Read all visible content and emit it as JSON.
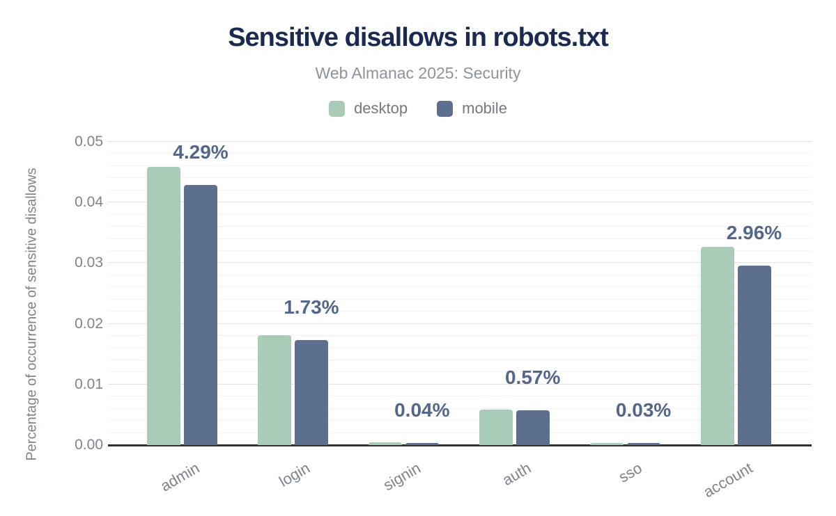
{
  "chart_data": {
    "type": "bar",
    "title": "Sensitive disallows in robots.txt",
    "subtitle": "Web Almanac 2025: Security",
    "categories": [
      "admin",
      "login",
      "signin",
      "auth",
      "sso",
      "account"
    ],
    "series": [
      {
        "name": "desktop",
        "color": "#a8ccb8",
        "values": [
          0.0459,
          0.0181,
          0.0005,
          0.0059,
          0.0003,
          0.0327
        ]
      },
      {
        "name": "mobile",
        "color": "#5d6f8e",
        "values": [
          0.0429,
          0.0173,
          0.0004,
          0.0057,
          0.0003,
          0.0296
        ]
      }
    ],
    "value_labels": {
      "series": "mobile",
      "labels": [
        "4.29%",
        "1.73%",
        "0.04%",
        "0.57%",
        "0.03%",
        "2.96%"
      ]
    },
    "ylabel": "Percentage of occurrence of sensitive disallows",
    "ylim": [
      0,
      0.05
    ],
    "yticks": [
      "0.05",
      "0.04",
      "0.03",
      "0.02",
      "0.01",
      "0.00"
    ],
    "grid": {
      "orientation": "horizontal",
      "major_interval": 0.01,
      "minor_interval": 0.002
    },
    "legend_position": "top",
    "colors": {
      "title": "#1b2a4e",
      "subtitle": "#8d939c",
      "annotation": "#54678a",
      "axis_text": "#7e838c",
      "baseline": "#2e2e2e",
      "grid_major": "#e3e3e6",
      "grid_minor": "#f4f4f4"
    }
  }
}
